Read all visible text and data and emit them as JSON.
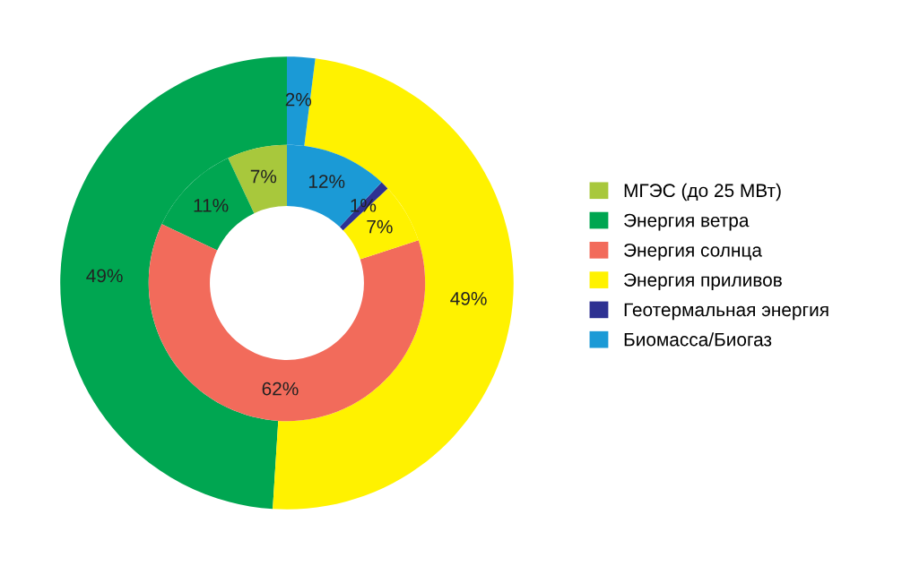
{
  "chart_data": {
    "type": "donut",
    "categories": [
      "МГЭС (до 25 МВт)",
      "Энергия ветра",
      "Энергия солнца",
      "Энергия приливов",
      "Геотермальная энергия",
      "Биомасса/Биогаз"
    ],
    "colors": [
      "#a8c83c",
      "#00a651",
      "#f26b5b",
      "#fff200",
      "#2e3192",
      "#1b9ad6"
    ],
    "series": [
      {
        "values": [
          null,
          49,
          null,
          49,
          null,
          2
        ],
        "value_labels": [
          null,
          "49%",
          null,
          "49%",
          null,
          "2%"
        ]
      },
      {
        "values": [
          7,
          11,
          62,
          7,
          1,
          12
        ],
        "value_labels": [
          "7%",
          "11%",
          "62%",
          "7%",
          "1%",
          "12%"
        ]
      }
    ],
    "legend": "right"
  }
}
